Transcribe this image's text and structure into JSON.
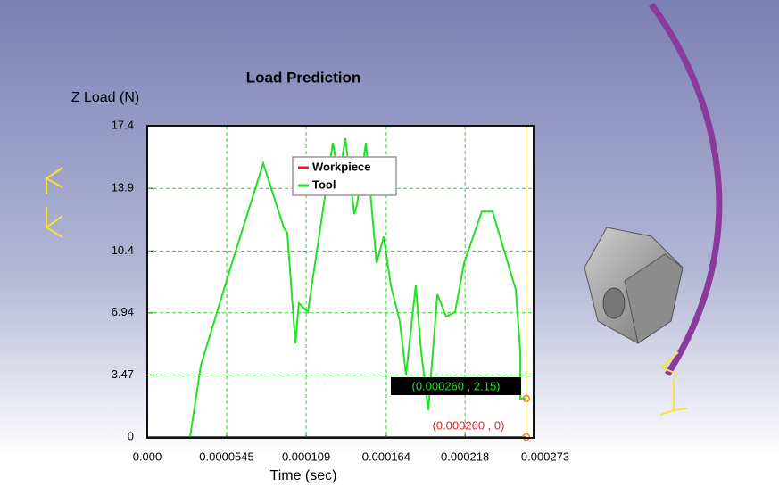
{
  "chart_data": {
    "type": "line",
    "title": "Load Prediction",
    "y_label": "Z Load (N)",
    "x_label": "Time (sec)",
    "xlim": [
      0,
      0.000273
    ],
    "ylim": [
      0,
      17.4
    ],
    "xticks": [
      {
        "value": 0,
        "label": "0.000"
      },
      5.45e-05,
      0.000109,
      0.000164,
      0.000218,
      0.000273
    ],
    "yticks": [
      0,
      3.47,
      6.94,
      10.4,
      13.9,
      17.4
    ],
    "grid": true,
    "series": [
      {
        "name": "Workpiece",
        "color": "#e02020",
        "x": [
          0,
          0.00026
        ],
        "values": [
          0,
          0
        ]
      },
      {
        "name": "Tool",
        "color": "#22e022",
        "x": [
          0,
          2.94e-05,
          3.67e-05,
          5.81e-05,
          7.96e-05,
          9.37e-05,
          9.61e-05,
          0.0001016,
          0.000104,
          0.0001102,
          0.0001273,
          0.0001316,
          0.0001359,
          0.000142,
          0.0001438,
          0.00015,
          0.0001573,
          0.0001622,
          0.0001671,
          0.0001732,
          0.0001775,
          0.0001842,
          0.0001879,
          0.0001928,
          0.000199,
          0.000205,
          0.0002112,
          0.0002173,
          0.0002295,
          0.0002369,
          0.0002528,
          0.0002559,
          0.0002559,
          0.00026
        ],
        "values": [
          0,
          0,
          3.99,
          9.72,
          15.3,
          11.7,
          11.4,
          5.23,
          7.48,
          6.98,
          16.45,
          14.46,
          16.7,
          12.46,
          12.96,
          16.45,
          9.72,
          11.2,
          8.47,
          6.48,
          3.49,
          8.47,
          4.74,
          1.5,
          7.98,
          6.73,
          6.98,
          9.72,
          12.6,
          12.6,
          8.23,
          4.74,
          2.15,
          2.15
        ]
      }
    ],
    "cursor_x": 0.00026,
    "annotations": [
      "(0.000260 , 2.15)",
      "(0.000260 , 0)"
    ]
  }
}
